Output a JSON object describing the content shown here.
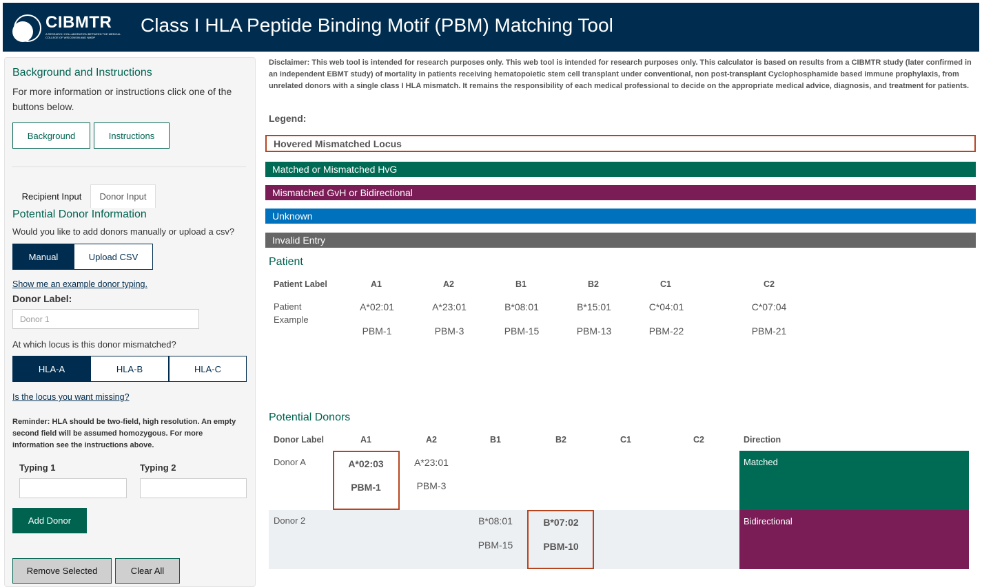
{
  "header": {
    "logo_text": "CIBMTR",
    "logo_sub": "A RESEARCH COLLABORATION BETWEEN THE MEDICAL COLLEGE OF WISCONSIN AND NMDP",
    "title": "Class I HLA Peptide Binding Motif (PBM) Matching Tool"
  },
  "sidebar": {
    "bg_title": "Background and Instructions",
    "bg_text": "For more information or instructions click one of the buttons below.",
    "background_btn": "Background",
    "instructions_btn": "Instructions",
    "tabs": [
      "Recipient Input",
      "Donor Input"
    ],
    "donor_info_title": "Potential Donor Information",
    "add_question": "Would you like to add donors manually or upload a csv?",
    "manual": "Manual",
    "upload_csv": "Upload CSV",
    "example_link": "Show me an example donor typing.",
    "donor_label": "Donor Label:",
    "donor_placeholder": "Donor 1",
    "locus_question": "At which locus is this donor mismatched?",
    "loci": [
      "HLA-A",
      "HLA-B",
      "HLA-C"
    ],
    "missing_link": "Is the locus you want missing?",
    "reminder": "Reminder: HLA should be two-field, high resolution. An empty second field will be assumed homozygous. For more information see the instructions above.",
    "typing1": "Typing 1",
    "typing2": "Typing 2",
    "add_donor": "Add Donor",
    "remove_selected": "Remove Selected",
    "clear_all": "Clear All"
  },
  "main": {
    "disclaimer": "Disclaimer: This web tool is intended for research purposes only. This web tool is intended for research purposes only. This calculator is based on results from a CIBMTR study (later confirmed in an independent EBMT study) of mortality in patients receiving hematopoietic stem cell transplant under conventional, non post-transplant Cyclophosphamide based immune prophylaxis, from unrelated donors with a single class I HLA mismatch. It remains the responsibility of each medical professional to decide on the appropriate medical advice, diagnosis, and treatment for patients.",
    "legend_title": "Legend:",
    "legend": [
      {
        "label": "Hovered Mismatched Locus",
        "color": "#ffffff"
      },
      {
        "label": "Matched or Mismatched HvG",
        "color": "#006b54"
      },
      {
        "label": "Mismatched GvH or Bidirectional",
        "color": "#7a1d57"
      },
      {
        "label": "Unknown",
        "color": "#0071bc"
      },
      {
        "label": "Invalid Entry",
        "color": "#666666"
      }
    ],
    "patient_title": "Patient",
    "patient_headers": [
      "Patient Label",
      "A1",
      "A2",
      "B1",
      "B2",
      "C1",
      "C2"
    ],
    "patient_label": "Patient Example",
    "patient_alleles": [
      "A*02:01",
      "A*23:01",
      "B*08:01",
      "B*15:01",
      "C*04:01",
      "C*07:04"
    ],
    "patient_pbm": [
      "PBM-1",
      "PBM-3",
      "PBM-15",
      "PBM-13",
      "PBM-22",
      "PBM-21"
    ],
    "donors_title": "Potential Donors",
    "donor_headers": [
      "Donor Label",
      "A1",
      "A2",
      "B1",
      "B2",
      "C1",
      "C2",
      "Direction"
    ],
    "donors": [
      {
        "label": "Donor A",
        "a1": "A*02:03",
        "a1_pbm": "PBM-1",
        "a2": "A*23:01",
        "a2_pbm": "PBM-3",
        "direction": "Matched",
        "dir_color": "#006b54"
      },
      {
        "label": "Donor 2",
        "b1": "B*08:01",
        "b1_pbm": "PBM-15",
        "b2": "B*07:02",
        "b2_pbm": "PBM-10",
        "direction": "Bidirectional",
        "dir_color": "#7a1d57"
      }
    ]
  }
}
